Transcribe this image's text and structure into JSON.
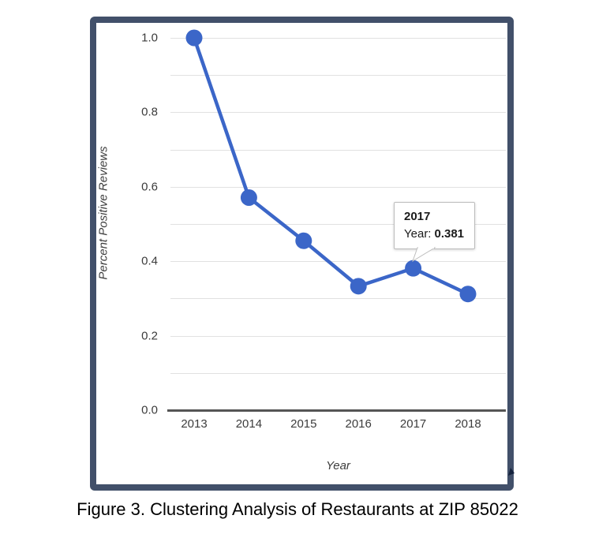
{
  "caption": "Figure 3. Clustering Analysis of Restaurants at ZIP 85022",
  "chart_data": {
    "type": "line",
    "x": [
      "2013",
      "2014",
      "2015",
      "2016",
      "2017",
      "2018"
    ],
    "series": [
      {
        "name": "Percent Positive Reviews",
        "values": [
          1.0,
          0.571,
          0.455,
          0.333,
          0.381,
          0.312
        ]
      }
    ],
    "xlabel": "Year",
    "ylabel": "Percent Positive Reviews",
    "ylim": [
      0.0,
      1.0
    ],
    "grid": true,
    "grid_step": 0.1,
    "yticks": [
      "1.0",
      "0.8",
      "0.6",
      "0.4",
      "0.2",
      "0.0"
    ],
    "legend": "none",
    "marker": "circle",
    "annotated_point": {
      "x": "2017",
      "value": 0.381
    }
  },
  "tooltip": {
    "title": "2017",
    "label": "Year:",
    "value": "0.381"
  },
  "colors": {
    "series": "#3B66C8",
    "frame_border": "#42506A",
    "gridline": "#E1E1E1",
    "axis_line": "#555555",
    "tick_label": "#3C3C3C",
    "tooltip_border": "#BDBDBD"
  }
}
